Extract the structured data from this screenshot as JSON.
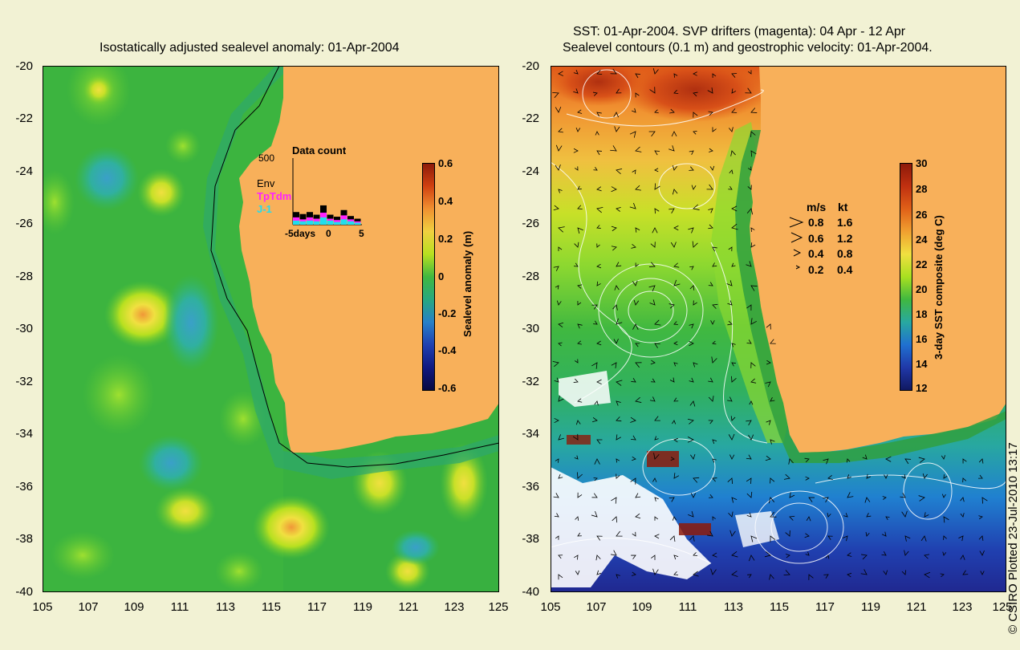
{
  "left_panel": {
    "title": "Isostatically adjusted sealevel anomaly: 01-Apr-2004",
    "y_ticks": [
      "-20",
      "-22",
      "-24",
      "-26",
      "-28",
      "-30",
      "-32",
      "-34",
      "-36",
      "-38",
      "-40"
    ],
    "x_ticks": [
      "105",
      "107",
      "109",
      "111",
      "113",
      "115",
      "117",
      "119",
      "121",
      "123",
      "125"
    ],
    "colorbar": {
      "label": "Sealevel anomaly (m)",
      "ticks": [
        "0.6",
        "0.4",
        "0.2",
        "0",
        "-0.2",
        "-0.4",
        "-0.6"
      ]
    },
    "inset": {
      "title": "Data count",
      "y_max": "500",
      "x_ticks": [
        "-5days",
        "0",
        "5"
      ],
      "legend": [
        "Env",
        "TpTdm",
        "J-1"
      ],
      "counts_env": [
        95,
        80,
        95,
        75,
        145,
        75,
        60,
        110,
        65,
        45
      ],
      "counts_tptdm": [
        55,
        40,
        55,
        45,
        90,
        45,
        35,
        70,
        40,
        25
      ],
      "counts_j1": [
        30,
        25,
        30,
        25,
        55,
        30,
        20,
        40,
        25,
        15
      ]
    }
  },
  "right_panel": {
    "title_line1": "SST: 01-Apr-2004. SVP drifters (magenta): 04 Apr - 12 Apr",
    "title_line2": "Sealevel contours (0.1 m) and geostrophic velocity: 01-Apr-2004.",
    "y_ticks": [
      "-20",
      "-22",
      "-24",
      "-26",
      "-28",
      "-30",
      "-32",
      "-34",
      "-36",
      "-38",
      "-40"
    ],
    "x_ticks": [
      "105",
      "107",
      "109",
      "111",
      "113",
      "115",
      "117",
      "119",
      "121",
      "123",
      "125"
    ],
    "colorbar": {
      "label": "3-day SST composite (deg C)",
      "ticks": [
        "30",
        "28",
        "26",
        "24",
        "22",
        "20",
        "18",
        "16",
        "14",
        "12"
      ]
    },
    "velocity_legend": {
      "header_ms": "m/s",
      "header_kt": "kt",
      "rows": [
        {
          "ms": "0.8",
          "kt": "1.6"
        },
        {
          "ms": "0.6",
          "kt": "1.2"
        },
        {
          "ms": "0.4",
          "kt": "0.8"
        },
        {
          "ms": "0.2",
          "kt": "0.4"
        }
      ]
    }
  },
  "credit": "© CSIRO Plotted 23-Jul-2010 13:17",
  "colors": {
    "background": "#f2f2d4",
    "land": "#f8b05a",
    "sla_base": "#33b833"
  }
}
